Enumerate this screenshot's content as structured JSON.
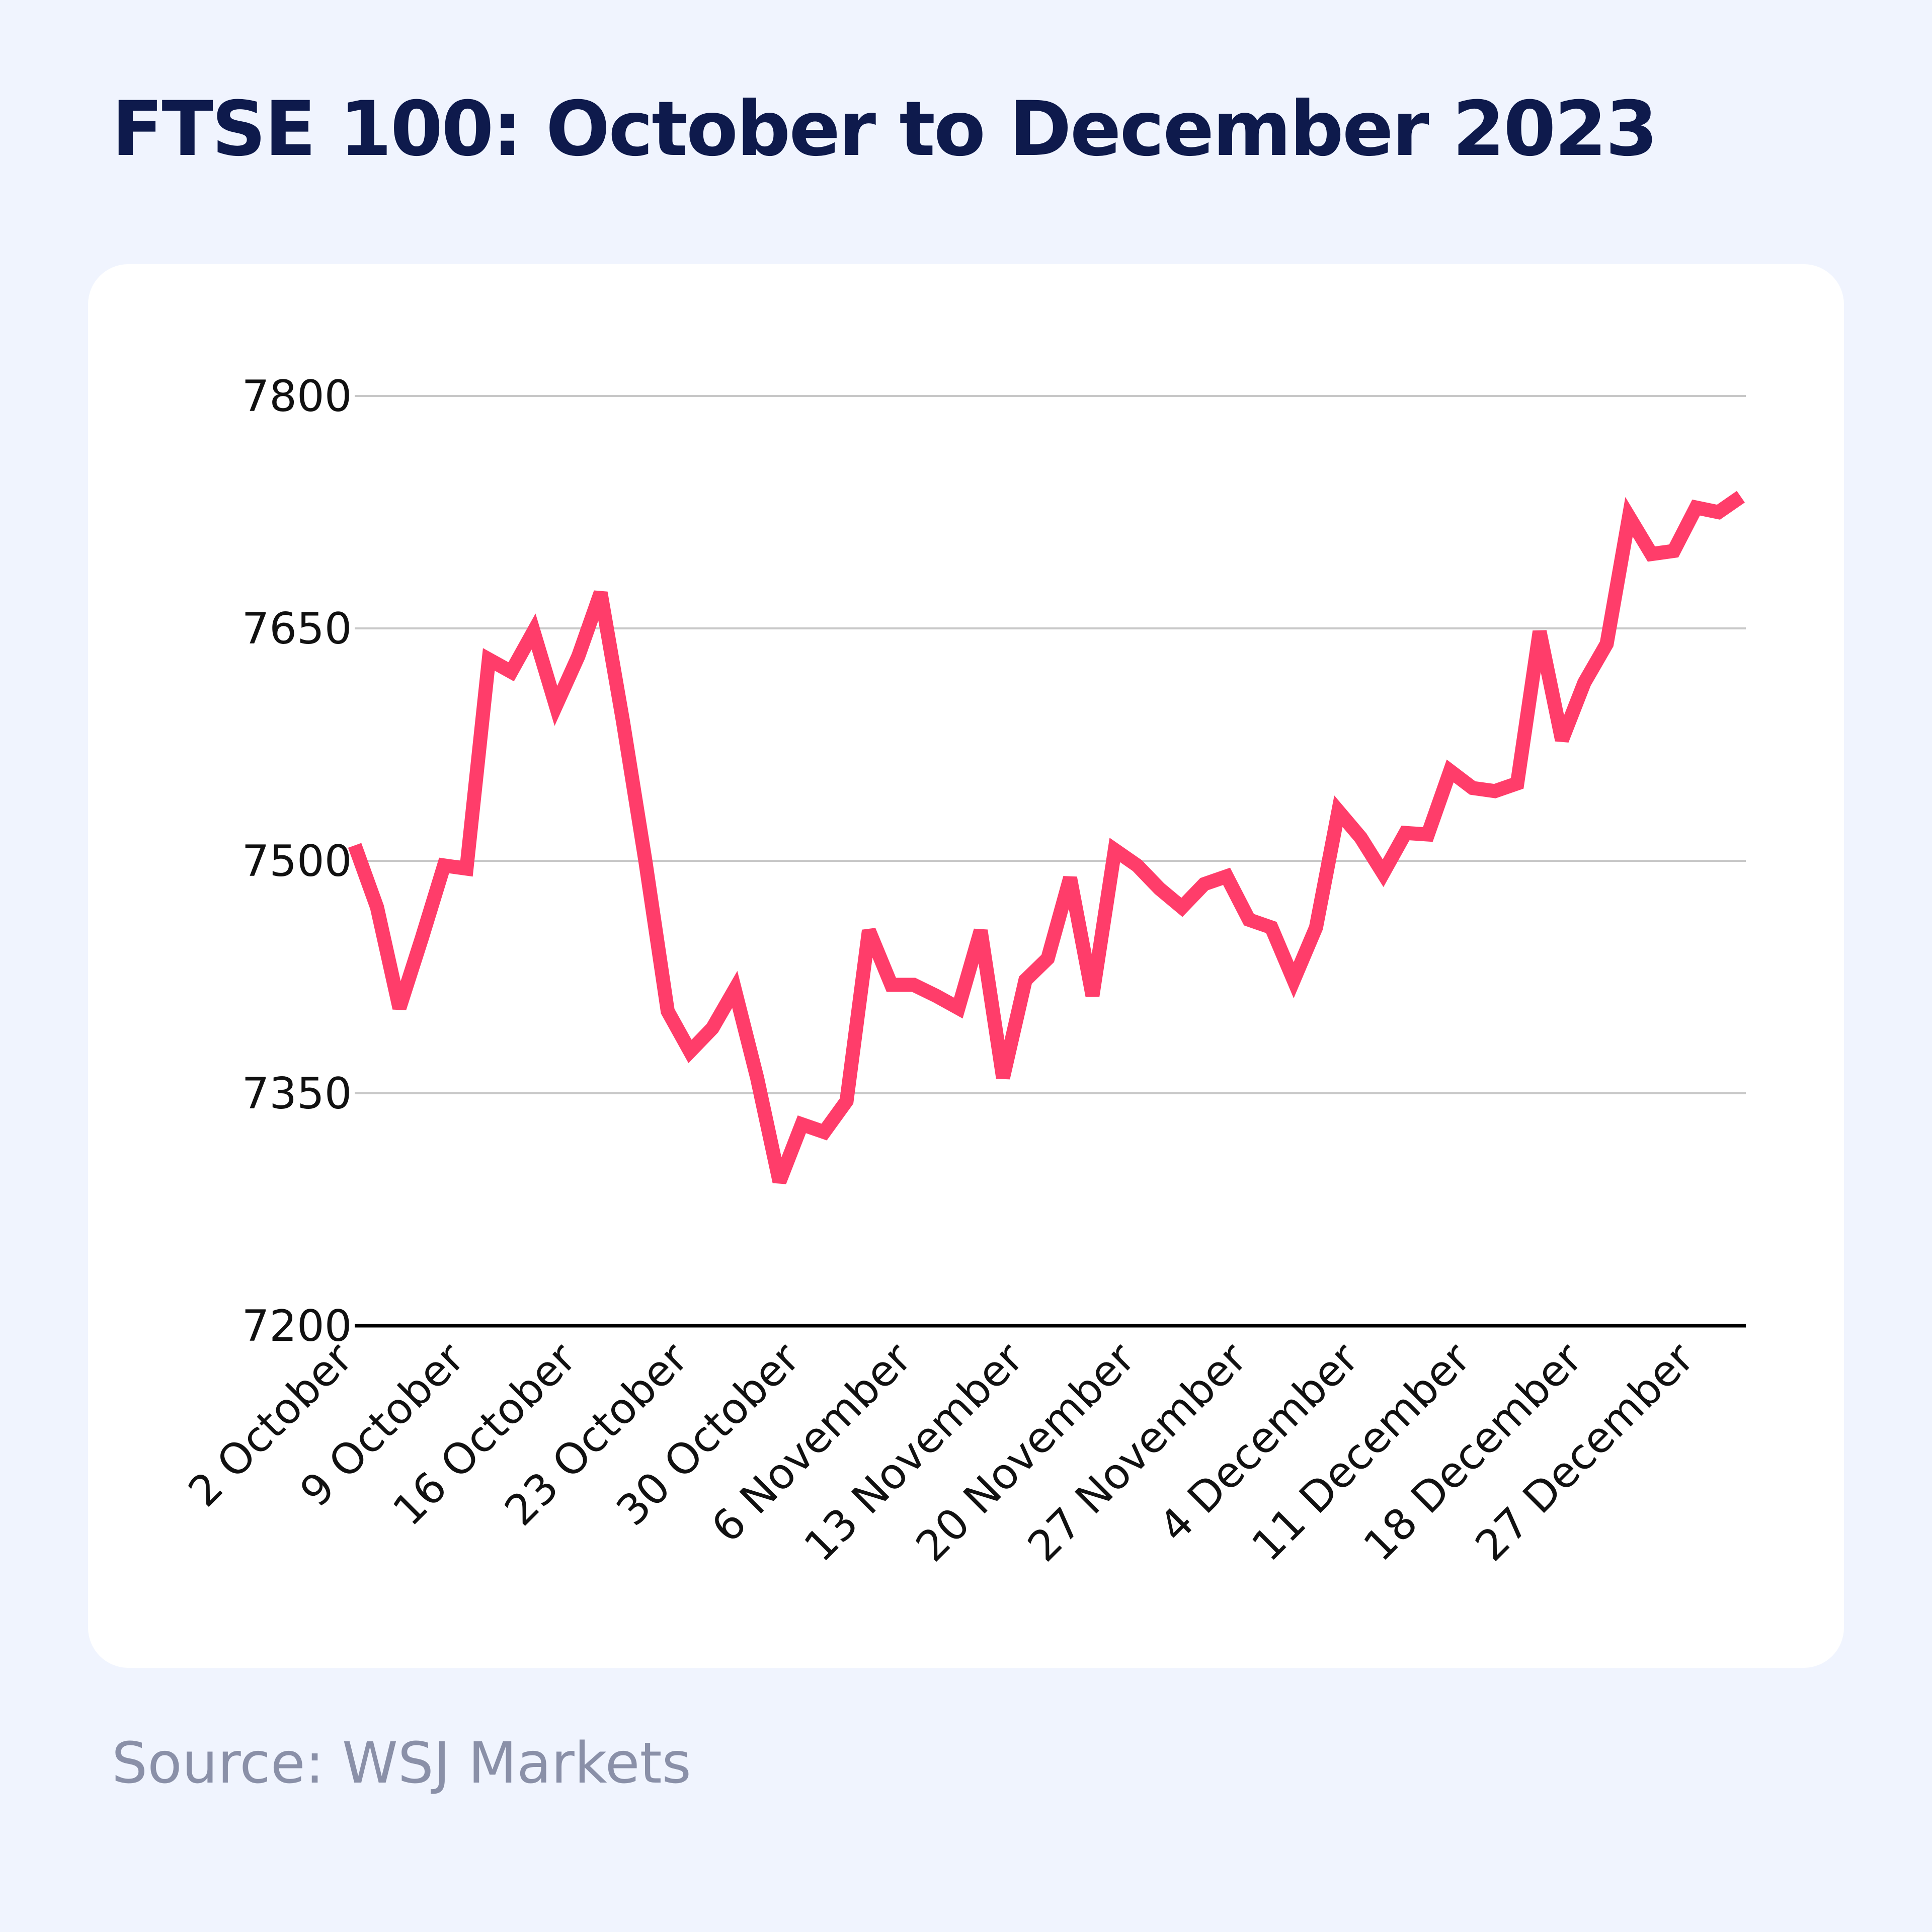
{
  "title": "FTSE 100: October to December 2023",
  "source": "Source: WSJ Markets",
  "colors": {
    "background": "#f0f4fe",
    "card": "#ffffff",
    "line": "#ff3d6a",
    "title": "#0e1a4c",
    "grid": "#c8c8c8",
    "axis": "#000000",
    "source": "#8a90a8"
  },
  "chart_data": {
    "type": "line",
    "title": "FTSE 100: October to December 2023",
    "xlabel": "",
    "ylabel": "",
    "ylim": [
      7200,
      7800
    ],
    "yticks": [
      7800,
      7650,
      7500,
      7350,
      7200
    ],
    "grid": true,
    "x_tick_labels": [
      "2 October",
      "9 October",
      "16 October",
      "23 October",
      "30 October",
      "6 November",
      "13 November",
      "20 November",
      "27 November",
      "4 December",
      "11 December",
      "18 December",
      "27 December"
    ],
    "x_tick_positions": [
      0,
      5,
      10,
      15,
      20,
      25,
      30,
      35,
      40,
      45,
      50,
      55,
      60
    ],
    "series": [
      {
        "values": [
          7510,
          7470,
          7405,
          7450,
          7497,
          7495,
          7630,
          7622,
          7648,
          7600,
          7632,
          7673,
          7590,
          7500,
          7403,
          7377,
          7392,
          7417,
          7360,
          7293,
          7330,
          7325,
          7345,
          7455,
          7420,
          7420,
          7413,
          7405,
          7455,
          7360,
          7423,
          7437,
          7489,
          7413,
          7507,
          7497,
          7482,
          7470,
          7485,
          7490,
          7462,
          7457,
          7423,
          7457,
          7532,
          7515,
          7492,
          7518,
          7517,
          7558,
          7547,
          7545,
          7550,
          7648,
          7578,
          7615,
          7640,
          7722,
          7698,
          7700,
          7728,
          7725,
          7735
        ]
      }
    ]
  }
}
